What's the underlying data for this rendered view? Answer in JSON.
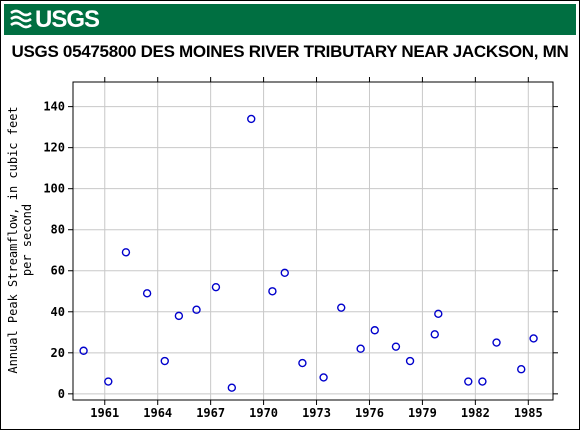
{
  "header": {
    "logo_text": "USGS",
    "logo_icon": "usgs-wave-icon",
    "banner_color": "#006f41"
  },
  "chart_data": {
    "type": "scatter",
    "title": "USGS 05475800 DES MOINES RIVER TRIBUTARY NEAR JACKSON, MN",
    "xlabel": "",
    "ylabel_lines": [
      "Annual Peak Streamflow, in cubic feet",
      "per second"
    ],
    "xlim": [
      1959.2,
      1986.4
    ],
    "ylim": [
      -3,
      152
    ],
    "x_ticks": [
      1961,
      1964,
      1967,
      1970,
      1973,
      1976,
      1979,
      1982,
      1985
    ],
    "y_ticks": [
      0,
      20,
      40,
      60,
      80,
      100,
      120,
      140
    ],
    "grid": true,
    "marker": "open-circle",
    "marker_color": "#0000cc",
    "series": [
      {
        "points": [
          {
            "x": 1959.8,
            "y": 21
          },
          {
            "x": 1961.2,
            "y": 6
          },
          {
            "x": 1962.2,
            "y": 69
          },
          {
            "x": 1963.4,
            "y": 49
          },
          {
            "x": 1964.4,
            "y": 16
          },
          {
            "x": 1965.2,
            "y": 38
          },
          {
            "x": 1966.2,
            "y": 41
          },
          {
            "x": 1967.3,
            "y": 52
          },
          {
            "x": 1968.2,
            "y": 3
          },
          {
            "x": 1969.3,
            "y": 134
          },
          {
            "x": 1970.5,
            "y": 50
          },
          {
            "x": 1971.2,
            "y": 59
          },
          {
            "x": 1972.2,
            "y": 15
          },
          {
            "x": 1973.4,
            "y": 8
          },
          {
            "x": 1974.4,
            "y": 42
          },
          {
            "x": 1975.5,
            "y": 22
          },
          {
            "x": 1976.3,
            "y": 31
          },
          {
            "x": 1977.5,
            "y": 23
          },
          {
            "x": 1978.3,
            "y": 16
          },
          {
            "x": 1979.7,
            "y": 29
          },
          {
            "x": 1979.9,
            "y": 39
          },
          {
            "x": 1981.6,
            "y": 6
          },
          {
            "x": 1982.4,
            "y": 6
          },
          {
            "x": 1983.2,
            "y": 25
          },
          {
            "x": 1984.6,
            "y": 12
          },
          {
            "x": 1985.3,
            "y": 27
          }
        ]
      }
    ]
  }
}
